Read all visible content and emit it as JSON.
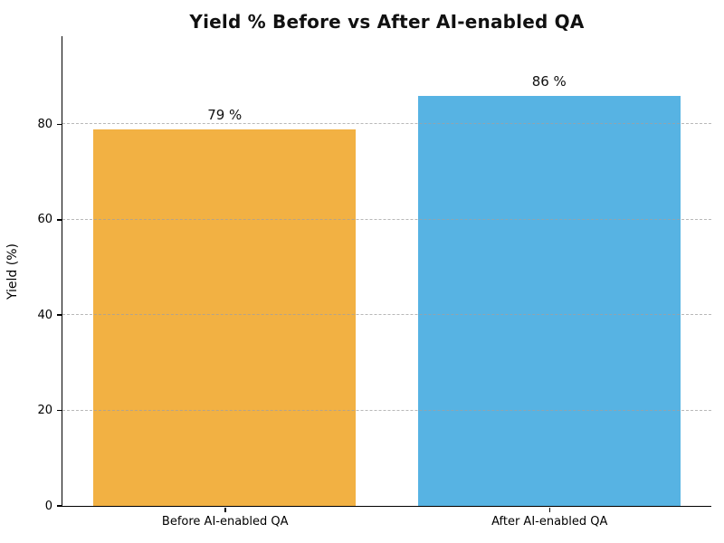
{
  "chart_data": {
    "type": "bar",
    "title": "Yield % Before vs After AI-enabled QA",
    "xlabel": "",
    "ylabel": "Yield (%)",
    "categories": [
      "Before AI-enabled QA",
      "After AI-enabled QA"
    ],
    "values": [
      79,
      86
    ],
    "value_labels": [
      "79 %",
      "86 %"
    ],
    "bar_colors": [
      "#F2B143",
      "#57B3E3"
    ],
    "ylim": [
      0,
      98.5
    ],
    "yticks": [
      0,
      20,
      40,
      60,
      80
    ],
    "grid": "horizontal-dashed",
    "grid_color": "#a0a0a0",
    "legend": "none",
    "bar_width_fraction": 0.81
  },
  "colors": {
    "background": "#ffffff",
    "title_text": "#111111",
    "axis": "#000000",
    "before_bar": "#F2B143",
    "after_bar": "#57B3E3"
  }
}
